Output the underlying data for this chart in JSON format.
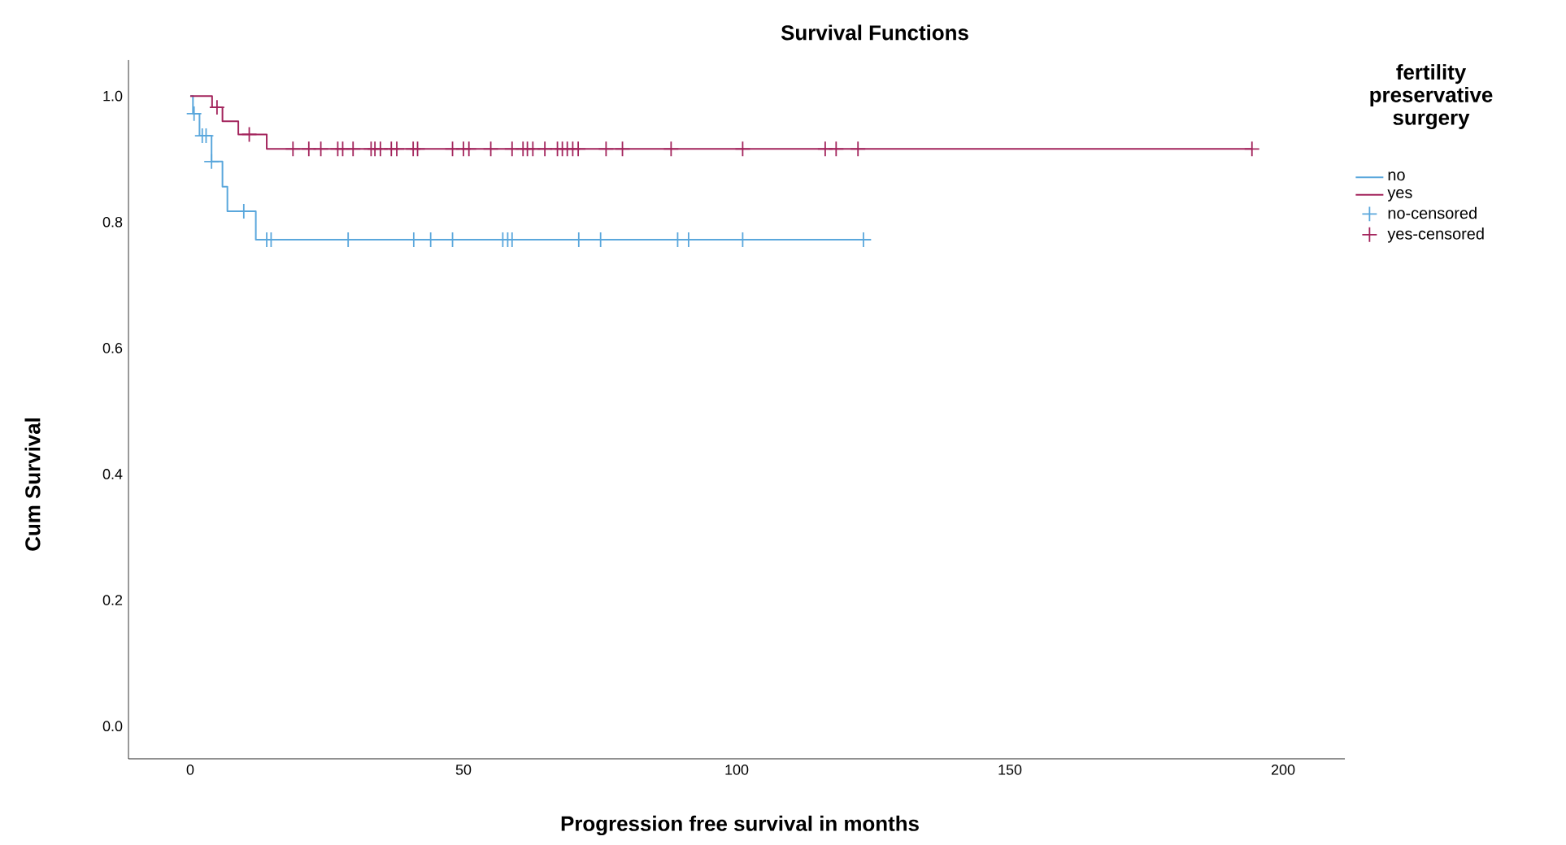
{
  "chart_data": {
    "type": "step",
    "title": "Survival Functions",
    "xlabel": "Progression free survival in months",
    "ylabel": "Cum Survival",
    "legend_title": "fertility preservative surgery",
    "legend": "right",
    "xlim": [
      -11.3,
      211.3
    ],
    "ylim": [
      -0.052,
      1.057
    ],
    "xticks": [
      0,
      50,
      100,
      150,
      200
    ],
    "yticks": [
      {
        "value": 0.0,
        "label": "0.0"
      },
      {
        "value": 0.2,
        "label": "0.2"
      },
      {
        "value": 0.4,
        "label": "0.4"
      },
      {
        "value": 0.6,
        "label": "0.6"
      },
      {
        "value": 0.8,
        "label": "0.8"
      },
      {
        "value": 1.0,
        "label": "1.0"
      }
    ],
    "series": [
      {
        "name": "no",
        "type": "step",
        "color": "#5aa7dc",
        "x": [
          0,
          0.5,
          1.7,
          3.9,
          5.9,
          6.8,
          12.0,
          124.6
        ],
        "values": [
          1.0,
          0.972,
          0.937,
          0.896,
          0.856,
          0.817,
          0.772,
          0.772
        ]
      },
      {
        "name": "yes",
        "type": "step",
        "color": "#a3245c",
        "x": [
          0,
          4.0,
          5.9,
          8.8,
          14.0,
          194.3
        ],
        "values": [
          1.0,
          0.982,
          0.96,
          0.939,
          0.916,
          0.916
        ]
      },
      {
        "name": "no-censored",
        "type": "scatter",
        "marker": "cross",
        "color": "#5aa7dc",
        "x": [
          0.7,
          2.2,
          2.9,
          3.9,
          9.8,
          14.0,
          14.8,
          28.9,
          40.9,
          44.0,
          48.0,
          57.2,
          58.1,
          58.9,
          71.1,
          75.1,
          89.2,
          91.2,
          101.1,
          123.2
        ],
        "values": [
          0.972,
          0.937,
          0.937,
          0.896,
          0.817,
          0.772,
          0.772,
          0.772,
          0.772,
          0.772,
          0.772,
          0.772,
          0.772,
          0.772,
          0.772,
          0.772,
          0.772,
          0.772,
          0.772,
          0.772
        ]
      },
      {
        "name": "yes-censored",
        "type": "scatter",
        "marker": "cross",
        "color": "#a3245c",
        "x": [
          4.9,
          10.8,
          18.8,
          21.7,
          23.9,
          27.0,
          27.9,
          29.8,
          33.1,
          33.8,
          34.8,
          36.8,
          37.8,
          40.8,
          41.6,
          48.0,
          50.0,
          51.0,
          55.0,
          58.9,
          60.9,
          61.7,
          62.7,
          64.9,
          67.2,
          68.1,
          69.0,
          70.0,
          71.0,
          76.1,
          79.1,
          88.0,
          101.1,
          116.2,
          118.2,
          122.2,
          194.3
        ],
        "values": [
          0.982,
          0.939,
          0.916,
          0.916,
          0.916,
          0.916,
          0.916,
          0.916,
          0.916,
          0.916,
          0.916,
          0.916,
          0.916,
          0.916,
          0.916,
          0.916,
          0.916,
          0.916,
          0.916,
          0.916,
          0.916,
          0.916,
          0.916,
          0.916,
          0.916,
          0.916,
          0.916,
          0.916,
          0.916,
          0.916,
          0.916,
          0.916,
          0.916,
          0.916,
          0.916,
          0.916,
          0.916
        ]
      }
    ]
  }
}
